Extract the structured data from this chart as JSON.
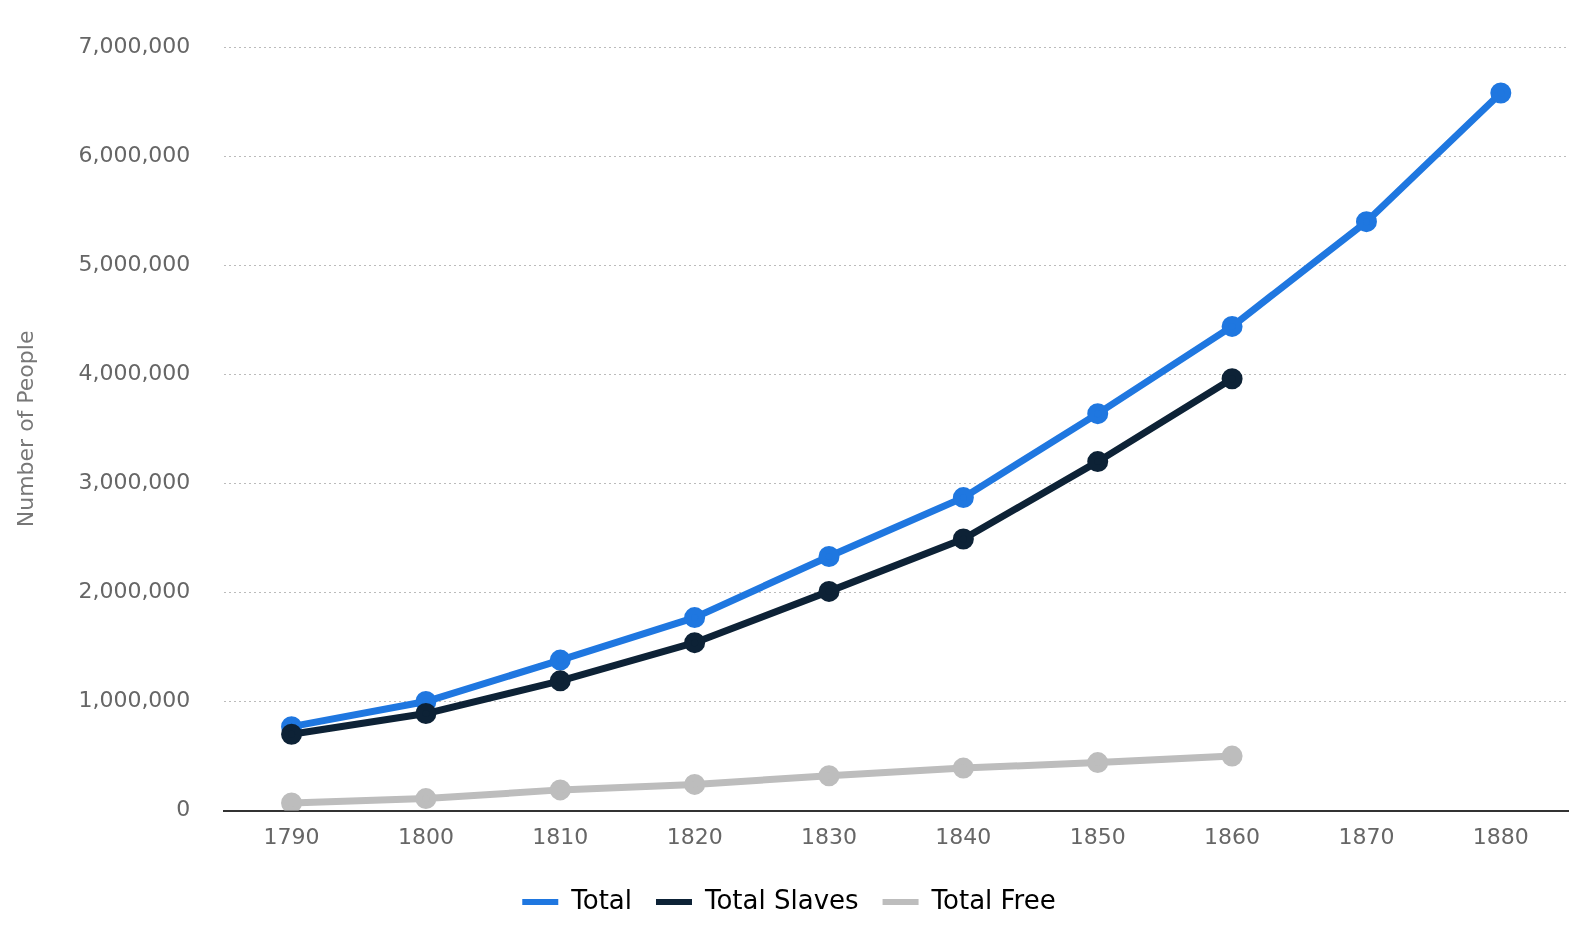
{
  "chart_data": {
    "type": "line",
    "ylabel": "Number of People",
    "categories": [
      "1790",
      "1800",
      "1810",
      "1820",
      "1830",
      "1840",
      "1850",
      "1860",
      "1870",
      "1880"
    ],
    "series": [
      {
        "name": "Total",
        "color": "#1f77e0",
        "values": [
          770000,
          1000000,
          1380000,
          1770000,
          2330000,
          2870000,
          3640000,
          4440000,
          5400000,
          6580000
        ]
      },
      {
        "name": "Total Slaves",
        "color": "#0d2236",
        "values": [
          700000,
          890000,
          1190000,
          1540000,
          2010000,
          2490000,
          3200000,
          3960000,
          null,
          null
        ]
      },
      {
        "name": "Total Free",
        "color": "#bdbdbd",
        "values": [
          70000,
          110000,
          190000,
          240000,
          320000,
          390000,
          440000,
          500000,
          null,
          null
        ]
      }
    ],
    "ylim": [
      0,
      7000000
    ],
    "yticks": [
      0,
      {
        "value": 1000000,
        "label": "1,000,000"
      },
      {
        "value": 2000000,
        "label": "2,000,000"
      },
      {
        "value": 3000000,
        "label": "3,000,000"
      },
      {
        "value": 4000000,
        "label": "4,000,000"
      },
      {
        "value": 5000000,
        "label": "5,000,000"
      },
      {
        "value": 6000000,
        "label": "6,000,000"
      },
      {
        "value": 7000000,
        "label": "7,000,000"
      }
    ],
    "grid": "y",
    "legend": "bottom",
    "marker": "circle",
    "line_style": "solid"
  }
}
